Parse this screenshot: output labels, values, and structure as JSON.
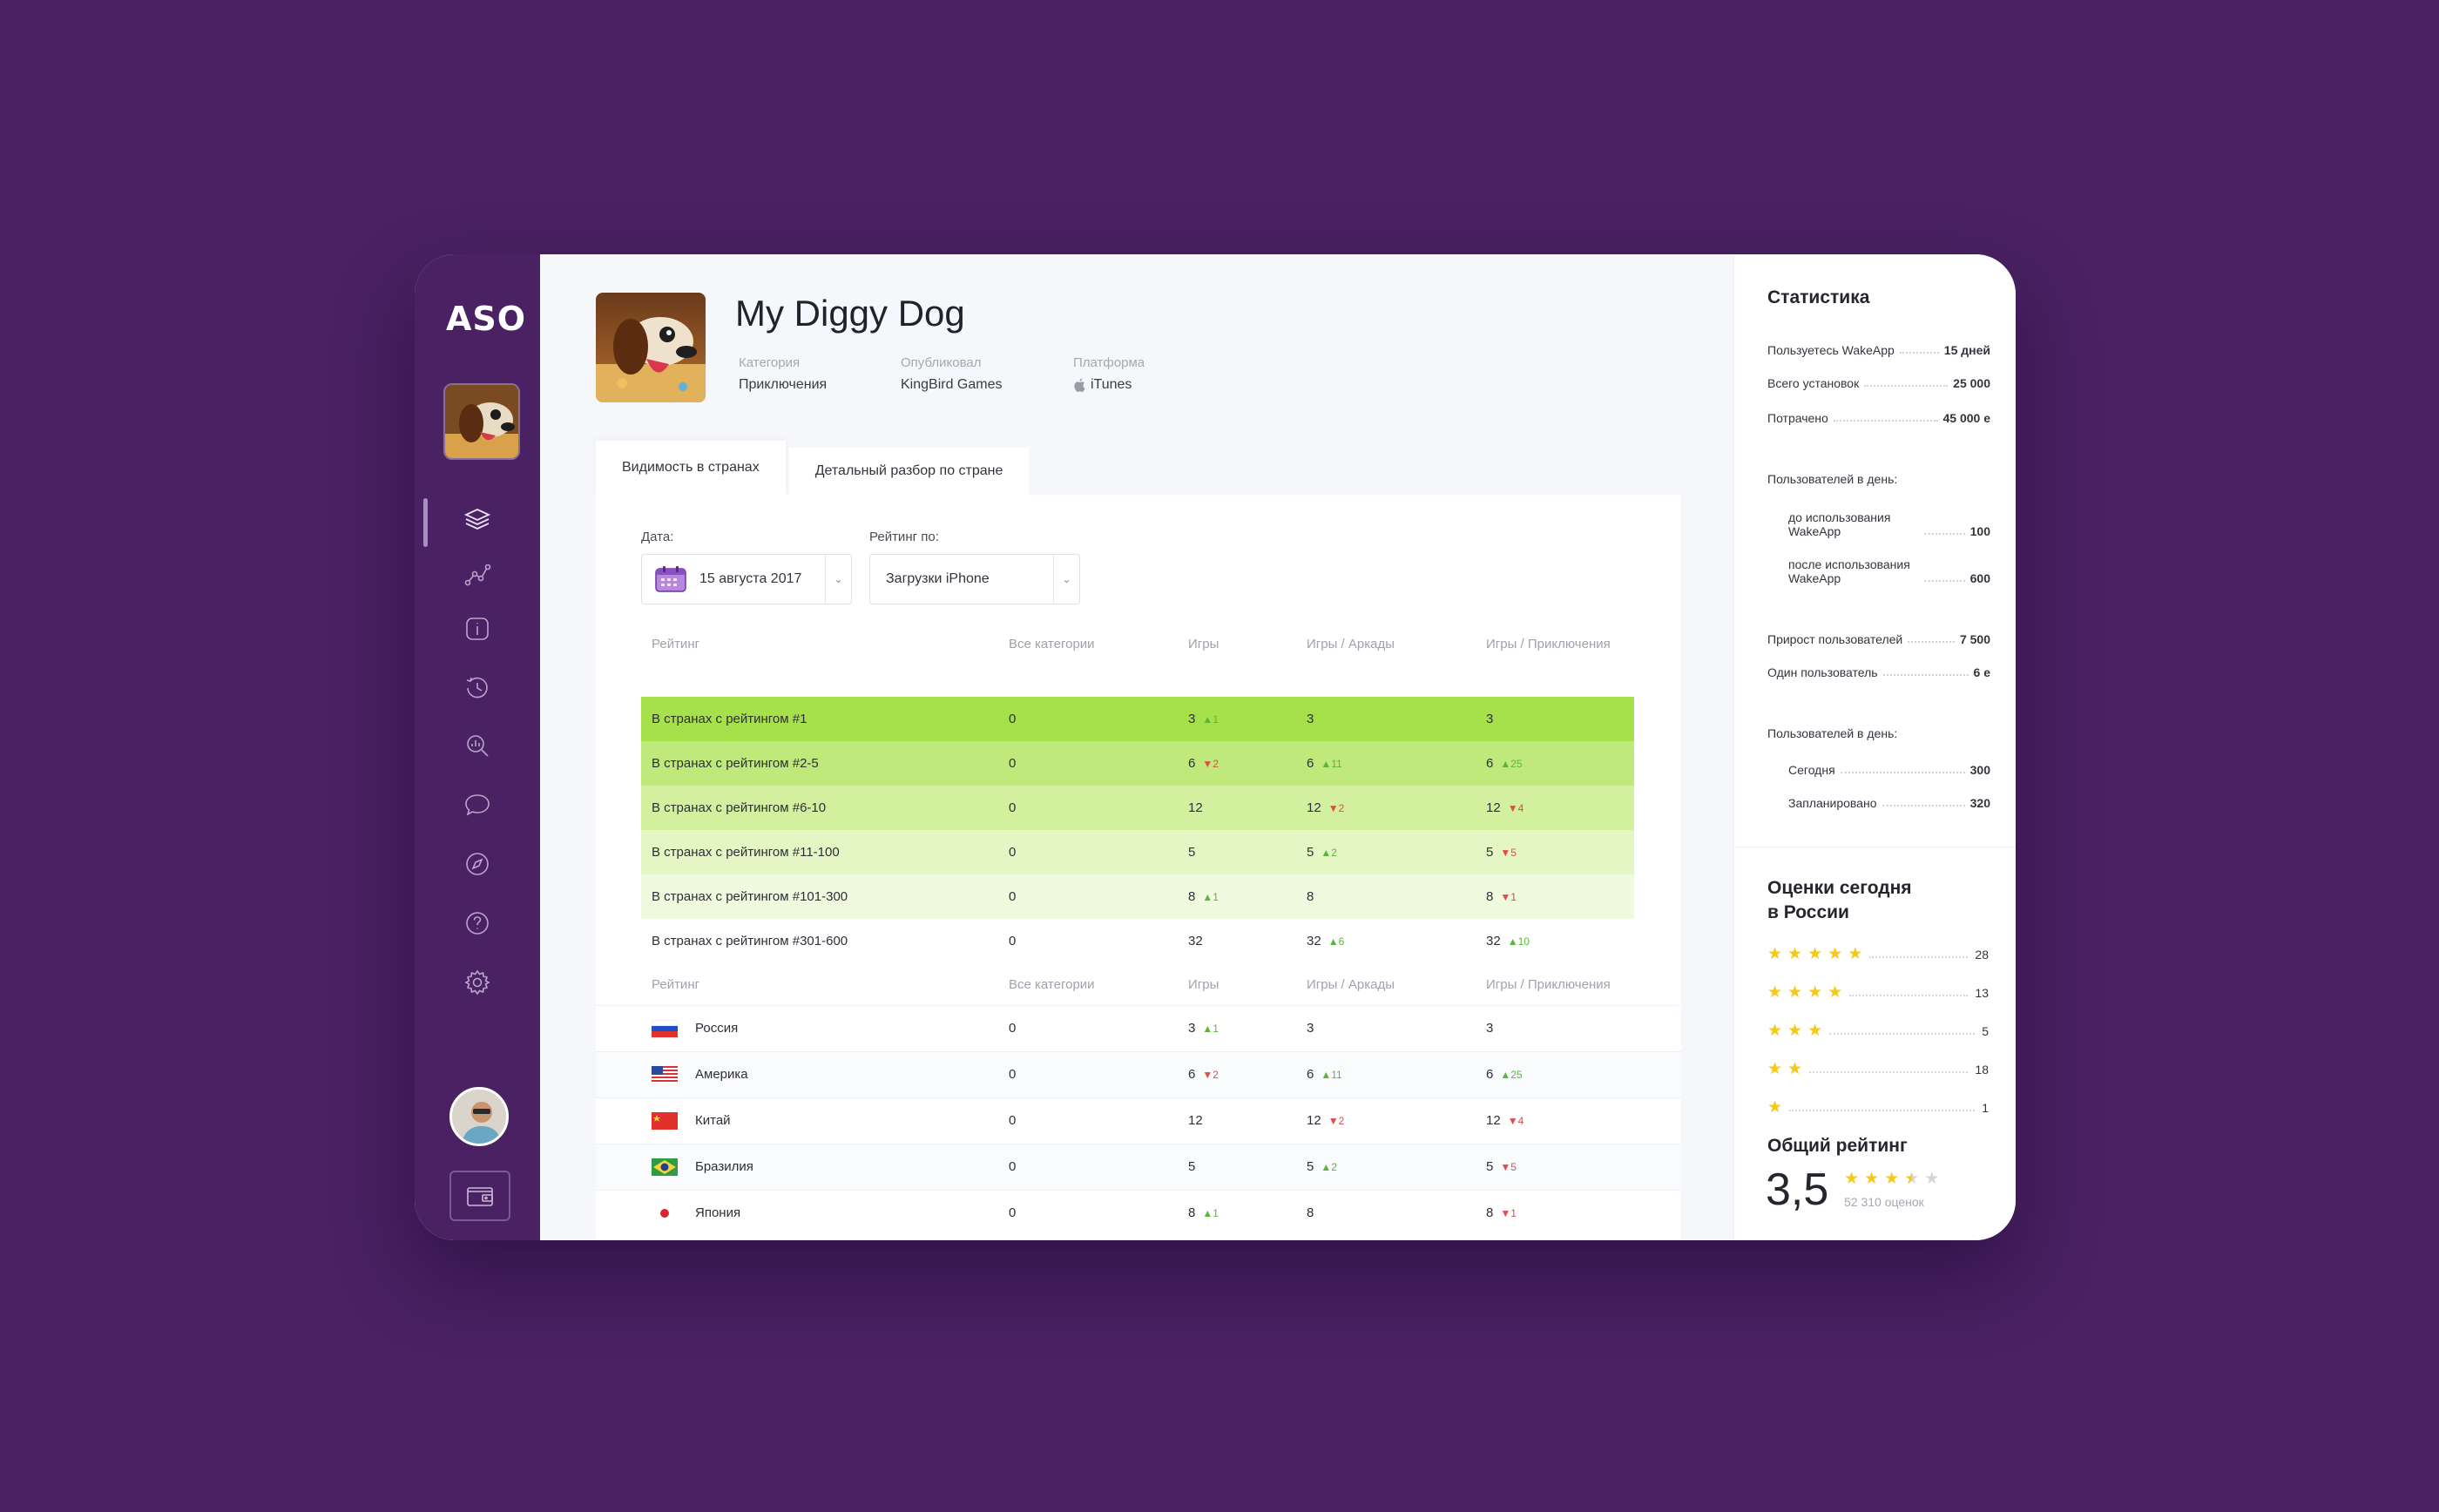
{
  "sidebar": {
    "logo": "ASO",
    "nav": [
      "layers-icon",
      "graph-icon",
      "info-icon",
      "history-icon",
      "analytics-icon",
      "chat-icon",
      "compass-icon",
      "help-icon",
      "settings-icon"
    ]
  },
  "app": {
    "title": "My Diggy Dog",
    "meta": [
      {
        "label": "Категория",
        "value": "Приключения"
      },
      {
        "label": "Опубликовал",
        "value": "KingBird Games"
      },
      {
        "label": "Платформа",
        "value": "iTunes"
      }
    ]
  },
  "tabs": [
    {
      "label": "Видимость в странах",
      "active": true
    },
    {
      "label": "Детальный разбор по стране",
      "active": false
    }
  ],
  "filters": {
    "date_label": "Дата:",
    "date_value": "15 августа 2017",
    "rating_label": "Рейтинг по:",
    "rating_value": "Загрузки iPhone"
  },
  "rating_table": {
    "columns": [
      "Рейтинг",
      "Все категории",
      "Игры",
      "Игры / Аркады",
      "Игры / Приключения"
    ],
    "rows": [
      {
        "label": "В странах с рейтингом #1",
        "bg": "#a6e14b",
        "cells": [
          {
            "v": "0"
          },
          {
            "v": "3",
            "d": "up",
            "c": "1"
          },
          {
            "v": "3"
          },
          {
            "v": "3"
          }
        ]
      },
      {
        "label": "В странах с рейтингом #2-5",
        "bg": "#bfe97a",
        "cells": [
          {
            "v": "0"
          },
          {
            "v": "6",
            "d": "down",
            "c": "2"
          },
          {
            "v": "6",
            "d": "up",
            "c": "11"
          },
          {
            "v": "6",
            "d": "up",
            "c": "25"
          }
        ]
      },
      {
        "label": "В странах с рейтингом #6-10",
        "bg": "#d3f09f",
        "cells": [
          {
            "v": "0"
          },
          {
            "v": "12"
          },
          {
            "v": "12",
            "d": "down",
            "c": "2"
          },
          {
            "v": "12",
            "d": "down",
            "c": "4"
          }
        ]
      },
      {
        "label": "В странах с рейтингом #11-100",
        "bg": "#e4f6c4",
        "cells": [
          {
            "v": "0"
          },
          {
            "v": "5"
          },
          {
            "v": "5",
            "d": "up",
            "c": "2"
          },
          {
            "v": "5",
            "d": "down",
            "c": "5"
          }
        ]
      },
      {
        "label": "В странах с рейтингом #101-300",
        "bg": "#f0fadf",
        "cells": [
          {
            "v": "0"
          },
          {
            "v": "8",
            "d": "up",
            "c": "1"
          },
          {
            "v": "8"
          },
          {
            "v": "8",
            "d": "down",
            "c": "1"
          }
        ]
      },
      {
        "label": "В странах с рейтингом #301-600",
        "bg": "#ffffff",
        "cells": [
          {
            "v": "0"
          },
          {
            "v": "32"
          },
          {
            "v": "32",
            "d": "up",
            "c": "6"
          },
          {
            "v": "32",
            "d": "up",
            "c": "10"
          }
        ]
      }
    ]
  },
  "country_table": {
    "columns": [
      "Рейтинг",
      "Все категории",
      "Игры",
      "Игры / Аркады",
      "Игры / Приключения"
    ],
    "rows": [
      {
        "country": "Россия",
        "flag": "ru",
        "cells": [
          {
            "v": "0"
          },
          {
            "v": "3",
            "d": "up",
            "c": "1"
          },
          {
            "v": "3"
          },
          {
            "v": "3"
          }
        ]
      },
      {
        "country": "Америка",
        "flag": "us",
        "cells": [
          {
            "v": "0"
          },
          {
            "v": "6",
            "d": "down",
            "c": "2"
          },
          {
            "v": "6",
            "d": "up",
            "c": "11"
          },
          {
            "v": "6",
            "d": "up",
            "c": "25"
          }
        ]
      },
      {
        "country": "Китай",
        "flag": "cn",
        "cells": [
          {
            "v": "0"
          },
          {
            "v": "12"
          },
          {
            "v": "12",
            "d": "down",
            "c": "2"
          },
          {
            "v": "12",
            "d": "down",
            "c": "4"
          }
        ]
      },
      {
        "country": "Бразилия",
        "flag": "br",
        "cells": [
          {
            "v": "0"
          },
          {
            "v": "5"
          },
          {
            "v": "5",
            "d": "up",
            "c": "2"
          },
          {
            "v": "5",
            "d": "down",
            "c": "5"
          }
        ]
      },
      {
        "country": "Япония",
        "flag": "jp",
        "cells": [
          {
            "v": "0"
          },
          {
            "v": "8",
            "d": "up",
            "c": "1"
          },
          {
            "v": "8"
          },
          {
            "v": "8",
            "d": "down",
            "c": "1"
          }
        ]
      }
    ]
  },
  "stats": {
    "title": "Статистика",
    "rows": [
      {
        "label": "Пользуетесь WakeApp",
        "value": "15 дней"
      },
      {
        "label": "Всего установок",
        "value": "25 000"
      },
      {
        "label": "Потрачено",
        "value": "45 000 e"
      }
    ],
    "per_day_label": "Пользователей в день:",
    "per_day": [
      {
        "label": "до использования WakeApp",
        "value": "100"
      },
      {
        "label": "после использования WakeApp",
        "value": "600"
      }
    ],
    "growth": [
      {
        "label": "Прирост пользователей",
        "value": "7 500"
      },
      {
        "label": "Один пользователь",
        "value": "6 e"
      }
    ],
    "per_day2_label": "Пользователей в день:",
    "per_day2": [
      {
        "label": "Сегодня",
        "value": "300"
      },
      {
        "label": "Запланировано",
        "value": "320"
      }
    ]
  },
  "ratings": {
    "title_line1": "Оценки сегодня",
    "title_line2": "в России",
    "rows": [
      {
        "stars": 5,
        "count": "28"
      },
      {
        "stars": 4,
        "count": "13"
      },
      {
        "stars": 3,
        "count": "5"
      },
      {
        "stars": 2,
        "count": "18"
      },
      {
        "stars": 1,
        "count": "1"
      }
    ],
    "overall_title": "Общий рейтинг",
    "overall_value": "3,5",
    "overall_stars": 3.5,
    "overall_count": "52 310 оценок"
  },
  "colors": {
    "brand": "#4a2163",
    "up": "#5db33e",
    "down": "#e34a4a",
    "star": "#f6c918"
  }
}
